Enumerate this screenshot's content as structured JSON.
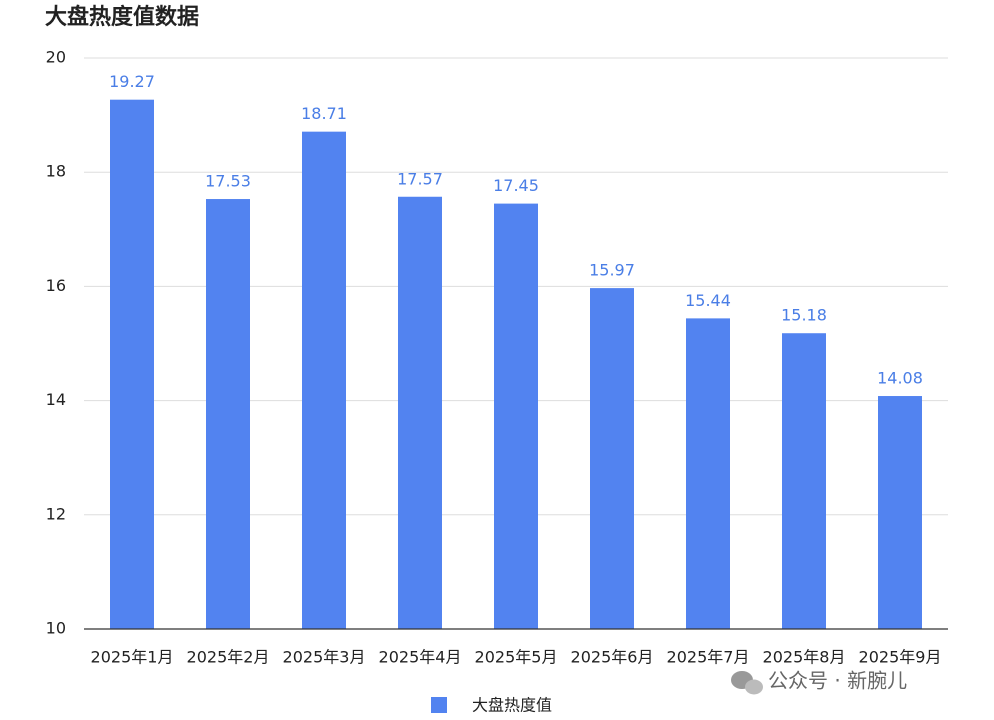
{
  "chart_data": {
    "type": "bar",
    "title": "大盘热度值数据",
    "categories": [
      "2025年1月",
      "2025年2月",
      "2025年3月",
      "2025年4月",
      "2025年5月",
      "2025年6月",
      "2025年7月",
      "2025年8月",
      "2025年9月"
    ],
    "series": [
      {
        "name": "大盘热度值",
        "color": "#5283f0",
        "values": [
          19.27,
          17.53,
          18.71,
          17.57,
          17.45,
          15.97,
          15.44,
          15.18,
          14.08
        ]
      }
    ],
    "ylim": [
      10,
      20
    ],
    "yticks": [
      10,
      12,
      14,
      16,
      18,
      20
    ],
    "grid": true,
    "legend": "bottom",
    "data_labels": true
  },
  "watermark": "公众号 · 新腕儿"
}
